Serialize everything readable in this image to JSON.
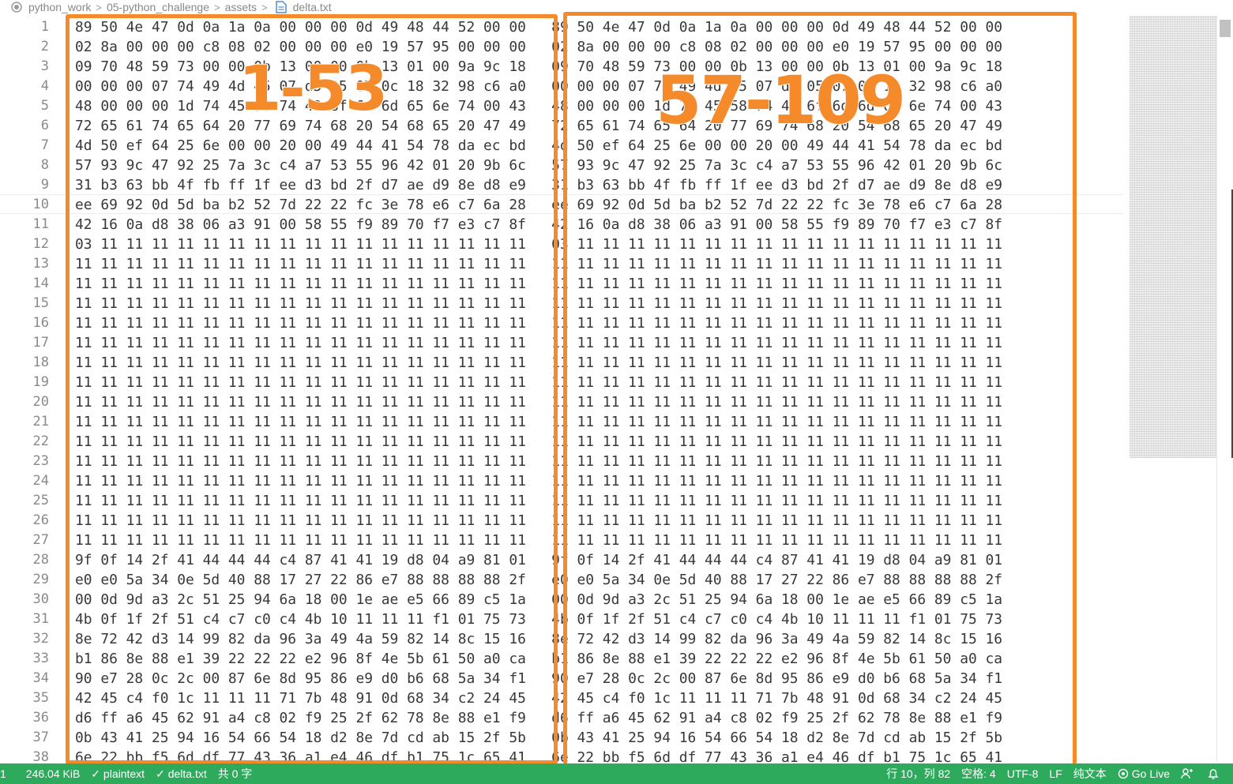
{
  "breadcrumb": {
    "items": [
      "python_work",
      "05-python_challenge",
      "assets",
      "delta.txt"
    ]
  },
  "editor": {
    "line_numbers": [
      "1",
      "2",
      "3",
      "4",
      "5",
      "6",
      "7",
      "8",
      "9",
      "10",
      "11",
      "12",
      "13",
      "14",
      "15",
      "16",
      "17",
      "18",
      "19",
      "20",
      "21",
      "22",
      "23",
      "24",
      "25",
      "26",
      "27",
      "28",
      "29",
      "30",
      "31",
      "32",
      "33",
      "34",
      "35",
      "36",
      "37",
      "38"
    ],
    "lines": [
      "89 50 4e 47 0d 0a 1a 0a 00 00 00 0d 49 48 44 52 00 00   89 50 4e 47 0d 0a 1a 0a 00 00 00 0d 49 48 44 52 00 00",
      "02 8a 00 00 00 c8 08 02 00 00 00 e0 19 57 95 00 00 00   02 8a 00 00 00 c8 08 02 00 00 00 e0 19 57 95 00 00 00",
      "09 70 48 59 73 00 00 0b 13 00 00 0b 13 01 00 9a 9c 18   09 70 48 59 73 00 00 0b 13 00 00 0b 13 01 00 9a 9c 18",
      "00 00 00 07 74 49 4d 45 07 d5 05 07 0c 18 32 98 c6 a0   00 00 00 07 74 49 4d 45 07 d5 05 07 0c 18 32 98 c6 a0",
      "48 00 00 00 1d 74 45 58 74 43 6f 6d 6d 65 6e 74 00 43   48 00 00 00 1d 74 45 58 74 43 6f 6d 6d 65 6e 74 00 43",
      "72 65 61 74 65 64 20 77 69 74 68 20 54 68 65 20 47 49   72 65 61 74 65 64 20 77 69 74 68 20 54 68 65 20 47 49",
      "4d 50 ef 64 25 6e 00 00 20 00 49 44 41 54 78 da ec bd   4d 50 ef 64 25 6e 00 00 20 00 49 44 41 54 78 da ec bd",
      "57 93 9c 47 92 25 7a 3c c4 a7 53 55 96 42 01 20 9b 6c   57 93 9c 47 92 25 7a 3c c4 a7 53 55 96 42 01 20 9b 6c",
      "31 b3 63 bb 4f fb ff 1f ee d3 bd 2f d7 ae d9 8e d8 e9   31 b3 63 bb 4f fb ff 1f ee d3 bd 2f d7 ae d9 8e d8 e9",
      "ee 69 92 0d 5d ba b2 52 7d 22 22 fc 3e 78 e6 c7 6a 28   ee 69 92 0d 5d ba b2 52 7d 22 22 fc 3e 78 e6 c7 6a 28",
      "42 16 0a d8 38 06 a3 91 00 58 55 f9 89 70 f7 e3 c7 8f   42 16 0a d8 38 06 a3 91 00 58 55 f9 89 70 f7 e3 c7 8f",
      "03 11 11 11 11 11 11 11 11 11 11 11 11 11 11 11 11 11   03 11 11 11 11 11 11 11 11 11 11 11 11 11 11 11 11 11",
      "11 11 11 11 11 11 11 11 11 11 11 11 11 11 11 11 11 11   11 11 11 11 11 11 11 11 11 11 11 11 11 11 11 11 11 11",
      "11 11 11 11 11 11 11 11 11 11 11 11 11 11 11 11 11 11   11 11 11 11 11 11 11 11 11 11 11 11 11 11 11 11 11 11",
      "11 11 11 11 11 11 11 11 11 11 11 11 11 11 11 11 11 11   11 11 11 11 11 11 11 11 11 11 11 11 11 11 11 11 11 11",
      "11 11 11 11 11 11 11 11 11 11 11 11 11 11 11 11 11 11   11 11 11 11 11 11 11 11 11 11 11 11 11 11 11 11 11 11",
      "11 11 11 11 11 11 11 11 11 11 11 11 11 11 11 11 11 11   11 11 11 11 11 11 11 11 11 11 11 11 11 11 11 11 11 11",
      "11 11 11 11 11 11 11 11 11 11 11 11 11 11 11 11 11 11   11 11 11 11 11 11 11 11 11 11 11 11 11 11 11 11 11 11",
      "11 11 11 11 11 11 11 11 11 11 11 11 11 11 11 11 11 11   11 11 11 11 11 11 11 11 11 11 11 11 11 11 11 11 11 11",
      "11 11 11 11 11 11 11 11 11 11 11 11 11 11 11 11 11 11   11 11 11 11 11 11 11 11 11 11 11 11 11 11 11 11 11 11",
      "11 11 11 11 11 11 11 11 11 11 11 11 11 11 11 11 11 11   11 11 11 11 11 11 11 11 11 11 11 11 11 11 11 11 11 11",
      "11 11 11 11 11 11 11 11 11 11 11 11 11 11 11 11 11 11   11 11 11 11 11 11 11 11 11 11 11 11 11 11 11 11 11 11",
      "11 11 11 11 11 11 11 11 11 11 11 11 11 11 11 11 11 11   11 11 11 11 11 11 11 11 11 11 11 11 11 11 11 11 11 11",
      "11 11 11 11 11 11 11 11 11 11 11 11 11 11 11 11 11 11   11 11 11 11 11 11 11 11 11 11 11 11 11 11 11 11 11 11",
      "11 11 11 11 11 11 11 11 11 11 11 11 11 11 11 11 11 11   11 11 11 11 11 11 11 11 11 11 11 11 11 11 11 11 11 11",
      "11 11 11 11 11 11 11 11 11 11 11 11 11 11 11 11 11 11   11 11 11 11 11 11 11 11 11 11 11 11 11 11 11 11 11 11",
      "11 11 11 11 11 11 11 11 11 11 11 11 11 11 11 11 11 11   11 11 11 11 11 11 11 11 11 11 11 11 11 11 11 11 11 11",
      "9f 0f 14 2f 41 44 44 44 c4 87 41 41 19 d8 04 a9 81 01   9f 0f 14 2f 41 44 44 44 c4 87 41 41 19 d8 04 a9 81 01",
      "e0 e0 5a 34 0e 5d 40 88 17 27 22 86 e7 88 88 88 88 2f   e0 e0 5a 34 0e 5d 40 88 17 27 22 86 e7 88 88 88 88 2f",
      "00 0d 9d a3 2c 51 25 94 6a 18 00 1e ae e5 66 89 c5 1a   00 0d 9d a3 2c 51 25 94 6a 18 00 1e ae e5 66 89 c5 1a",
      "4b 0f 1f 2f 51 c4 c7 c0 c4 4b 10 11 11 11 f1 01 75 73   4b 0f 1f 2f 51 c4 c7 c0 c4 4b 10 11 11 11 f1 01 75 73",
      "8e 72 42 d3 14 99 82 da 96 3a 49 4a 59 82 14 8c 15 16   8e 72 42 d3 14 99 82 da 96 3a 49 4a 59 82 14 8c 15 16",
      "b1 86 8e 88 e1 39 22 22 22 e2 96 8f 4e 5b 61 50 a0 ca   b1 86 8e 88 e1 39 22 22 22 e2 96 8f 4e 5b 61 50 a0 ca",
      "90 e7 28 0c 2c 00 87 6e 8d 95 86 e9 d0 b6 68 5a 34 f1   90 e7 28 0c 2c 00 87 6e 8d 95 86 e9 d0 b6 68 5a 34 f1",
      "42 45 c4 f0 1c 11 11 11 71 7b 48 91 0d 68 34 c2 24 45   42 45 c4 f0 1c 11 11 11 71 7b 48 91 0d 68 34 c2 24 45",
      "d6 ff a6 45 62 91 a4 c8 02 f9 25 2f 62 78 8e 88 e1 f9   d6 ff a6 45 62 91 a4 c8 02 f9 25 2f 62 78 8e 88 e1 f9",
      "0b 43 41 25 94 16 54 66 54 18 d2 8e 7d cd ab 15 2f 5b   0b 43 41 25 94 16 54 66 54 18 d2 8e 7d cd ab 15 2f 5b",
      "6e 22 bb f5 6d df 77 43 36 a1 e4 46 df b1 75 1c 65 41   6e 22 bb f5 6d df 77 43 36 a1 e4 46 df b1 75 1c 65 41"
    ]
  },
  "annotations": {
    "left_label": "1-53",
    "right_label": "57-109"
  },
  "statusbar": {
    "left_number": "1",
    "file_size": "246.04 KiB",
    "language": "plaintext",
    "file_name": "delta.txt",
    "selection": "共 0 字",
    "cursor_pos": "行 10，列 82",
    "indent": "空格: 4",
    "encoding": "UTF-8",
    "eol": "LF",
    "mode": "纯文本",
    "go_live": "Go Live"
  },
  "colors": {
    "statusbar_bg": "#2eaa5c",
    "annotation": "#f58a2a"
  }
}
